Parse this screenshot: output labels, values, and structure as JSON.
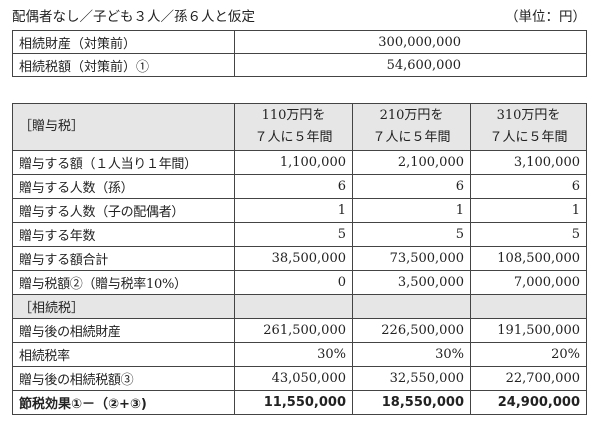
{
  "title": "配偶者なし／子ども３人／孫６人と仮定",
  "unit": "（単位：円）",
  "summary": [
    {
      "label": "相続財産（対策前）",
      "value": "300,000,000"
    },
    {
      "label": "相続税額（対策前）①",
      "value": "54,600,000"
    }
  ],
  "main": {
    "header": {
      "section": "［贈与税］",
      "columns": [
        {
          "line1": "110万円を",
          "line2": "７人に５年間"
        },
        {
          "line1": "210万円を",
          "line2": "７人に５年間"
        },
        {
          "line1": "310万円を",
          "line2": "７人に５年間"
        }
      ]
    },
    "rows": [
      {
        "label": "贈与する額（１人当り１年間）",
        "values": [
          "1,100,000",
          "2,100,000",
          "3,100,000"
        ]
      },
      {
        "label": "贈与する人数（孫）",
        "values": [
          "6",
          "6",
          "6"
        ]
      },
      {
        "label": "贈与する人数（子の配偶者）",
        "values": [
          "1",
          "1",
          "1"
        ]
      },
      {
        "label": "贈与する年数",
        "values": [
          "5",
          "5",
          "5"
        ]
      },
      {
        "label": "贈与する額合計",
        "values": [
          "38,500,000",
          "73,500,000",
          "108,500,000"
        ]
      },
      {
        "label": "贈与税額②（贈与税率10%）",
        "values": [
          "0",
          "3,500,000",
          "7,000,000"
        ]
      }
    ],
    "section2": "［相続税］",
    "rows2": [
      {
        "label": "贈与後の相続財産",
        "values": [
          "261,500,000",
          "226,500,000",
          "191,500,000"
        ]
      },
      {
        "label": "相続税率",
        "values": [
          "30%",
          "30%",
          "20%"
        ]
      },
      {
        "label": "贈与後の相続税額③",
        "values": [
          "43,050,000",
          "32,550,000",
          "22,700,000"
        ]
      }
    ],
    "total": {
      "label": "節税効果①－（②+③)",
      "values": [
        "11,550,000",
        "18,550,000",
        "24,900,000"
      ]
    }
  }
}
